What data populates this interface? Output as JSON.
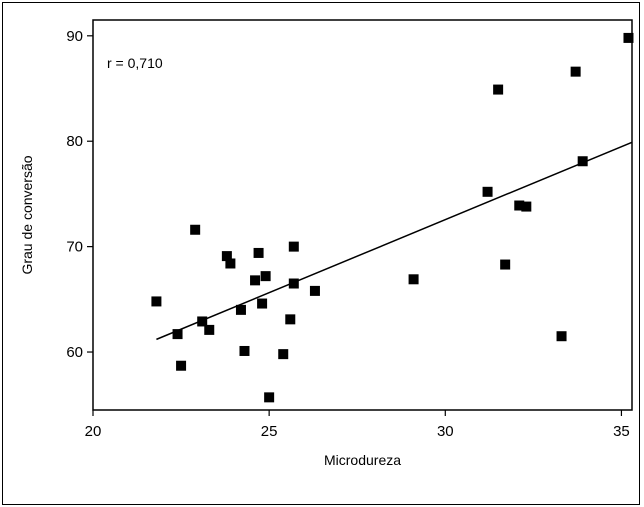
{
  "chart_data": {
    "type": "scatter",
    "xlabel": "Microdureza",
    "ylabel": "Grau de conversão",
    "xlim": [
      20,
      35.3
    ],
    "ylim": [
      54.5,
      91.5
    ],
    "x_ticks": [
      "20",
      "25",
      "30",
      "35"
    ],
    "y_ticks": [
      "60",
      "70",
      "80",
      "90"
    ],
    "annotation": "r = 0,710",
    "grid": false,
    "legend": "none",
    "marker_color": "#000000",
    "points": [
      {
        "x": 21.8,
        "y": 64.8
      },
      {
        "x": 22.4,
        "y": 61.7
      },
      {
        "x": 22.5,
        "y": 58.7
      },
      {
        "x": 22.9,
        "y": 71.6
      },
      {
        "x": 23.1,
        "y": 62.9
      },
      {
        "x": 23.3,
        "y": 62.1
      },
      {
        "x": 23.8,
        "y": 69.1
      },
      {
        "x": 23.9,
        "y": 68.4
      },
      {
        "x": 24.2,
        "y": 64.0
      },
      {
        "x": 24.3,
        "y": 60.1
      },
      {
        "x": 24.6,
        "y": 66.8
      },
      {
        "x": 24.7,
        "y": 69.4
      },
      {
        "x": 24.8,
        "y": 64.6
      },
      {
        "x": 24.9,
        "y": 67.2
      },
      {
        "x": 25.0,
        "y": 55.7
      },
      {
        "x": 25.4,
        "y": 59.8
      },
      {
        "x": 25.6,
        "y": 63.1
      },
      {
        "x": 25.7,
        "y": 70.0
      },
      {
        "x": 25.7,
        "y": 66.5
      },
      {
        "x": 26.3,
        "y": 65.8
      },
      {
        "x": 29.1,
        "y": 66.9
      },
      {
        "x": 31.2,
        "y": 75.2
      },
      {
        "x": 31.5,
        "y": 84.9
      },
      {
        "x": 31.7,
        "y": 68.3
      },
      {
        "x": 32.1,
        "y": 73.9
      },
      {
        "x": 32.3,
        "y": 73.8
      },
      {
        "x": 33.3,
        "y": 61.5
      },
      {
        "x": 33.7,
        "y": 86.6
      },
      {
        "x": 33.9,
        "y": 78.1
      },
      {
        "x": 35.2,
        "y": 89.8
      }
    ],
    "fit_line": {
      "x": [
        21.8,
        35.3
      ],
      "y": [
        61.2,
        79.9
      ]
    }
  }
}
